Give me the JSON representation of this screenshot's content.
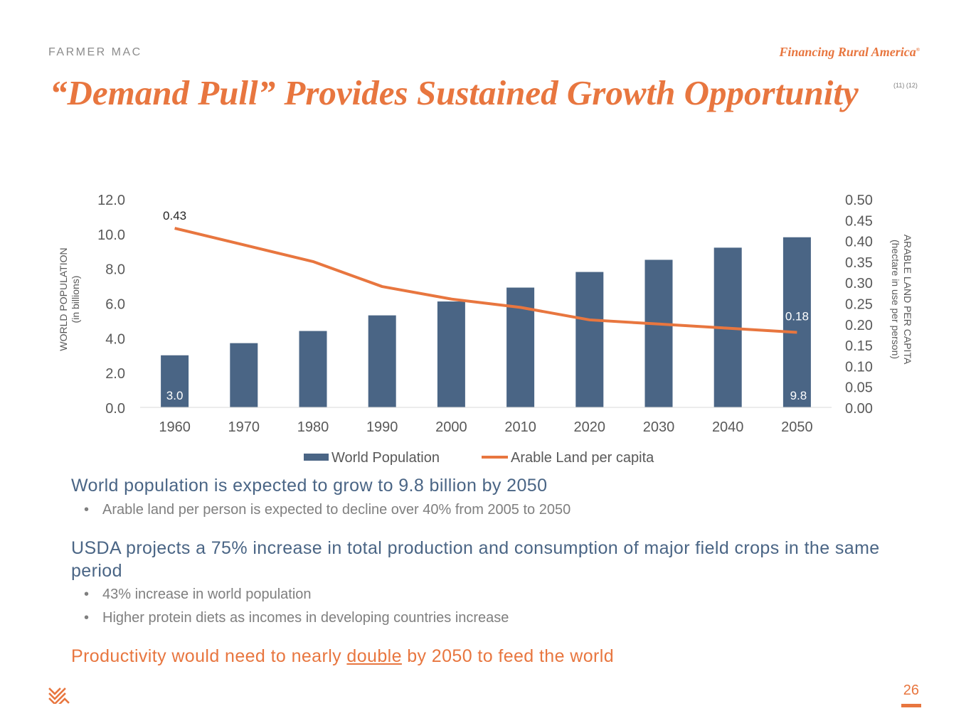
{
  "header": {
    "brand": "FARMER MAC",
    "tagline": "Financing Rural America",
    "tagline_mark": "®",
    "title": "“Demand Pull” Provides Sustained Growth Opportunity",
    "refs": "(11) (12)"
  },
  "chart_data": {
    "type": "bar+line",
    "categories": [
      "1960",
      "1970",
      "1980",
      "1990",
      "2000",
      "2010",
      "2020",
      "2030",
      "2040",
      "2050"
    ],
    "series": [
      {
        "name": "World Population",
        "type": "bar",
        "axis": "left",
        "color": "#4a6585",
        "values": [
          3.0,
          3.7,
          4.4,
          5.3,
          6.1,
          6.9,
          7.8,
          8.5,
          9.2,
          9.8
        ]
      },
      {
        "name": "Arable Land per capita",
        "type": "line",
        "axis": "right",
        "color": "#e8763f",
        "values": [
          0.43,
          0.39,
          0.35,
          0.29,
          0.26,
          0.24,
          0.21,
          0.2,
          0.19,
          0.18
        ]
      }
    ],
    "y_left": {
      "label": "WORLD POPULATION",
      "sublabel": "(in billions)",
      "ylim": [
        0,
        12
      ],
      "ticks": [
        "0.0",
        "2.0",
        "4.0",
        "6.0",
        "8.0",
        "10.0",
        "12.0"
      ]
    },
    "y_right": {
      "label": "ARABLE LAND PER CAPITA",
      "sublabel": "(hectare in use per person)",
      "ylim": [
        0,
        0.5
      ],
      "ticks": [
        "0.00",
        "0.05",
        "0.10",
        "0.15",
        "0.20",
        "0.25",
        "0.30",
        "0.35",
        "0.40",
        "0.45",
        "0.50"
      ]
    },
    "data_labels": {
      "bar_first": "3.0",
      "bar_last": "9.8",
      "line_first": "0.43",
      "line_last": "0.18"
    },
    "legend": [
      "World Population",
      "Arable Land per capita"
    ],
    "legend_position": "bottom"
  },
  "body": {
    "heading1": "World population is expected to grow to 9.8 billion by 2050",
    "bullet1": "Arable land per person is expected to decline over 40% from 2005 to 2050",
    "heading2": "USDA projects a 75% increase in total production and consumption of major field crops in the same period",
    "bullet2": "43% increase in world population",
    "bullet3": "Higher protein diets as incomes in developing countries increase",
    "heading3_before": "Productivity would need to nearly ",
    "heading3_emph": "double",
    "heading3_after": " by 2050 to feed the world",
    "bullet_symbol": "•"
  },
  "footer": {
    "page_number": "26"
  }
}
